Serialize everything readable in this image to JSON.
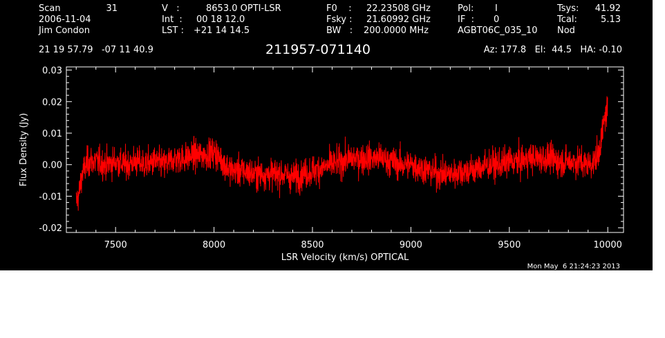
{
  "header": {
    "col1": [
      "Scan",
      "2006-11-04",
      "Jim Condon"
    ],
    "scan_number": "31",
    "col2_labels": [
      "V   :",
      "Int  :",
      "LST :"
    ],
    "col2_values": [
      "8653.0 OPTI-LSR",
      "00 18 12.0",
      "+21 14 14.5"
    ],
    "col3_labels": [
      "F0    :",
      "Fsky :",
      "BW   :"
    ],
    "col3_values": [
      "22.23508 GHz",
      "21.60992 GHz",
      "200.0000 MHz"
    ],
    "col4_labels": [
      "Pol:",
      "IF  :",
      "AGBT06C_035_10"
    ],
    "col4_values": [
      "I",
      "0",
      ""
    ],
    "col5_labels": [
      "Tsys:",
      "Tcal:",
      "Nod"
    ],
    "col5_values": [
      "41.92",
      "5.13",
      ""
    ],
    "coords": "21 19 57.79   -07 11 40.9",
    "source": "211957-071140",
    "pointing": "Az: 177.8   El:  44.5   HA: -0.10"
  },
  "timestamp": "Mon May  6 21:24:23 2013",
  "colors": {
    "background": "#000000",
    "axes": "#ffffff",
    "spectrum": "#ff0000"
  },
  "chart_data": {
    "type": "line",
    "xlabel": "LSR Velocity (km/s) OPTICAL",
    "ylabel": "Flux Density (Jy)",
    "xlim": [
      7250,
      10080
    ],
    "ylim": [
      -0.0215,
      0.031
    ],
    "xticks": [
      7500,
      8000,
      8500,
      9000,
      9500,
      10000
    ],
    "yticks": [
      -0.02,
      -0.01,
      0.0,
      0.01,
      0.02,
      0.03
    ],
    "ytick_labels": [
      "-0.02",
      "-0.01",
      "0.00",
      "0.01",
      "0.02",
      "0.03"
    ],
    "grid": false,
    "series": [
      {
        "x": [
          7300,
          7315,
          7330,
          7360,
          7400,
          7450,
          7500,
          7550,
          7600,
          7650,
          7700,
          7750,
          7800,
          7850,
          7900,
          7950,
          8000,
          8030,
          8070,
          8100,
          8150,
          8200,
          8250,
          8300,
          8350,
          8400,
          8450,
          8500,
          8550,
          8600,
          8650,
          8700,
          8750,
          8800,
          8850,
          8900,
          8950,
          9000,
          9050,
          9100,
          9150,
          9200,
          9250,
          9300,
          9350,
          9400,
          9450,
          9500,
          9550,
          9600,
          9650,
          9700,
          9750,
          9800,
          9850,
          9900,
          9930,
          9950,
          9970,
          9985,
          10000
        ],
        "y": [
          -0.012,
          -0.009,
          -0.003,
          0.001,
          0.001,
          0.0,
          0.001,
          0.0,
          0.001,
          0.0,
          0.001,
          0.0,
          0.002,
          0.002,
          0.003,
          0.003,
          0.004,
          0.002,
          -0.001,
          -0.002,
          -0.002,
          -0.003,
          -0.003,
          -0.003,
          -0.003,
          -0.004,
          -0.003,
          -0.002,
          -0.001,
          0.0,
          0.001,
          0.002,
          0.002,
          0.002,
          0.002,
          0.001,
          0.0,
          0.0,
          -0.001,
          -0.002,
          -0.003,
          -0.003,
          -0.002,
          -0.002,
          -0.001,
          0.0,
          0.0,
          0.001,
          0.001,
          0.002,
          0.002,
          0.002,
          0.001,
          0.001,
          0.001,
          0.0,
          0.001,
          0.003,
          0.009,
          0.015,
          0.018
        ],
        "noise_rms": 0.0034
      }
    ]
  }
}
